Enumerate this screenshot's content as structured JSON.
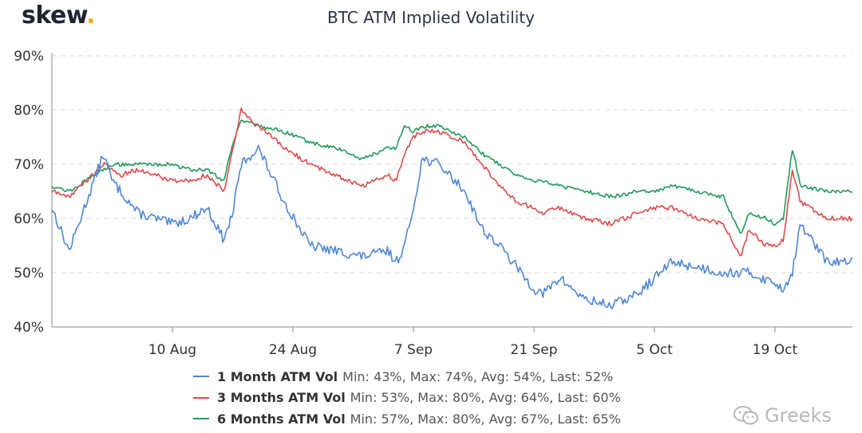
{
  "brand": {
    "name": "skew",
    "dot": "."
  },
  "watermark": {
    "text": "Greeks",
    "icon": "wechat-icon"
  },
  "chart_data": {
    "type": "line",
    "title": "BTC ATM Implied Volatility",
    "xlabel": "",
    "ylabel": "",
    "ylim": [
      40,
      90
    ],
    "y_ticks": [
      "40%",
      "50%",
      "60%",
      "70%",
      "80%",
      "90%"
    ],
    "y_tick_values": [
      40,
      50,
      60,
      70,
      80,
      90
    ],
    "xlim": [
      "2020-07-27",
      "2020-10-28"
    ],
    "x_ticks": [
      "10 Aug",
      "24 Aug",
      "7 Sep",
      "21 Sep",
      "5 Oct",
      "19 Oct"
    ],
    "x_tick_dates": [
      "2020-08-10",
      "2020-08-24",
      "2020-09-07",
      "2020-09-21",
      "2020-10-05",
      "2020-10-19"
    ],
    "grid": true,
    "legend_position": "bottom",
    "series": [
      {
        "name": "1 Month ATM Vol",
        "stats": "Min: 43%, Max: 74%, Avg: 54%, Last: 52%",
        "color": "#4f86d6",
        "x": [
          "2020-07-27",
          "2020-07-29",
          "2020-07-31",
          "2020-08-02",
          "2020-08-03",
          "2020-08-04",
          "2020-08-06",
          "2020-08-08",
          "2020-08-10",
          "2020-08-12",
          "2020-08-14",
          "2020-08-16",
          "2020-08-17",
          "2020-08-18",
          "2020-08-20",
          "2020-08-23",
          "2020-08-26",
          "2020-08-29",
          "2020-09-01",
          "2020-09-04",
          "2020-09-05",
          "2020-09-06",
          "2020-09-07",
          "2020-09-08",
          "2020-09-10",
          "2020-09-13",
          "2020-09-15",
          "2020-09-17",
          "2020-09-19",
          "2020-09-21",
          "2020-09-22",
          "2020-09-24",
          "2020-09-27",
          "2020-09-30",
          "2020-10-03",
          "2020-10-05",
          "2020-10-07",
          "2020-10-10",
          "2020-10-13",
          "2020-10-16",
          "2020-10-19",
          "2020-10-20",
          "2020-10-21",
          "2020-10-22",
          "2020-10-25",
          "2020-10-28"
        ],
        "values": [
          62,
          54,
          63,
          72,
          67,
          65,
          61,
          60,
          59,
          60,
          62,
          56,
          61,
          70,
          73,
          63,
          55,
          54,
          53,
          54,
          52,
          55,
          62,
          71,
          70,
          65,
          58,
          55,
          51,
          47,
          46,
          49,
          45,
          44,
          46,
          49,
          52,
          51,
          50,
          50,
          48,
          47,
          50,
          59,
          52,
          52
        ]
      },
      {
        "name": "3 Months ATM Vol",
        "stats": "Min: 53%, Max: 80%, Avg: 64%, Last: 60%",
        "color": "#dd4b4b",
        "x": [
          "2020-07-27",
          "2020-07-29",
          "2020-07-31",
          "2020-08-02",
          "2020-08-03",
          "2020-08-04",
          "2020-08-06",
          "2020-08-08",
          "2020-08-10",
          "2020-08-12",
          "2020-08-14",
          "2020-08-16",
          "2020-08-17",
          "2020-08-18",
          "2020-08-20",
          "2020-08-23",
          "2020-08-26",
          "2020-08-29",
          "2020-09-01",
          "2020-09-04",
          "2020-09-05",
          "2020-09-06",
          "2020-09-07",
          "2020-09-08",
          "2020-09-10",
          "2020-09-13",
          "2020-09-15",
          "2020-09-17",
          "2020-09-19",
          "2020-09-21",
          "2020-09-22",
          "2020-09-24",
          "2020-09-27",
          "2020-09-30",
          "2020-10-03",
          "2020-10-05",
          "2020-10-07",
          "2020-10-10",
          "2020-10-13",
          "2020-10-15",
          "2020-10-16",
          "2020-10-18",
          "2020-10-19",
          "2020-10-20",
          "2020-10-21",
          "2020-10-22",
          "2020-10-25",
          "2020-10-28"
        ],
        "values": [
          65,
          64,
          67,
          70,
          69,
          68,
          69,
          68,
          67,
          67,
          68,
          65,
          73,
          80,
          77,
          73,
          70,
          68,
          66,
          68,
          67,
          72,
          75,
          76,
          76,
          74,
          70,
          66,
          63,
          62,
          61,
          62,
          60,
          59,
          61,
          62,
          62,
          60,
          59,
          53,
          58,
          55,
          55,
          56,
          69,
          63,
          60,
          60
        ]
      },
      {
        "name": "6 Months ATM Vol",
        "stats": "Min: 57%, Max: 80%, Avg: 67%, Last: 65%",
        "color": "#1f9a5a",
        "x": [
          "2020-07-27",
          "2020-07-29",
          "2020-07-31",
          "2020-08-02",
          "2020-08-03",
          "2020-08-04",
          "2020-08-06",
          "2020-08-08",
          "2020-08-10",
          "2020-08-12",
          "2020-08-14",
          "2020-08-16",
          "2020-08-17",
          "2020-08-18",
          "2020-08-20",
          "2020-08-23",
          "2020-08-26",
          "2020-08-29",
          "2020-09-01",
          "2020-09-04",
          "2020-09-05",
          "2020-09-06",
          "2020-09-07",
          "2020-09-08",
          "2020-09-10",
          "2020-09-13",
          "2020-09-15",
          "2020-09-17",
          "2020-09-19",
          "2020-09-21",
          "2020-09-22",
          "2020-09-24",
          "2020-09-27",
          "2020-09-30",
          "2020-10-03",
          "2020-10-05",
          "2020-10-07",
          "2020-10-10",
          "2020-10-13",
          "2020-10-15",
          "2020-10-16",
          "2020-10-18",
          "2020-10-19",
          "2020-10-20",
          "2020-10-21",
          "2020-10-22",
          "2020-10-25",
          "2020-10-28"
        ],
        "values": [
          66,
          65,
          67,
          69,
          70,
          70,
          70,
          70,
          70,
          69,
          69,
          67,
          74,
          78,
          77,
          76,
          74,
          73,
          71,
          73,
          73,
          77,
          76,
          77,
          77,
          75,
          72,
          70,
          68,
          67,
          67,
          66,
          65,
          64,
          65,
          65,
          66,
          65,
          64,
          57,
          61,
          60,
          59,
          60,
          73,
          66,
          65,
          65
        ]
      }
    ]
  }
}
